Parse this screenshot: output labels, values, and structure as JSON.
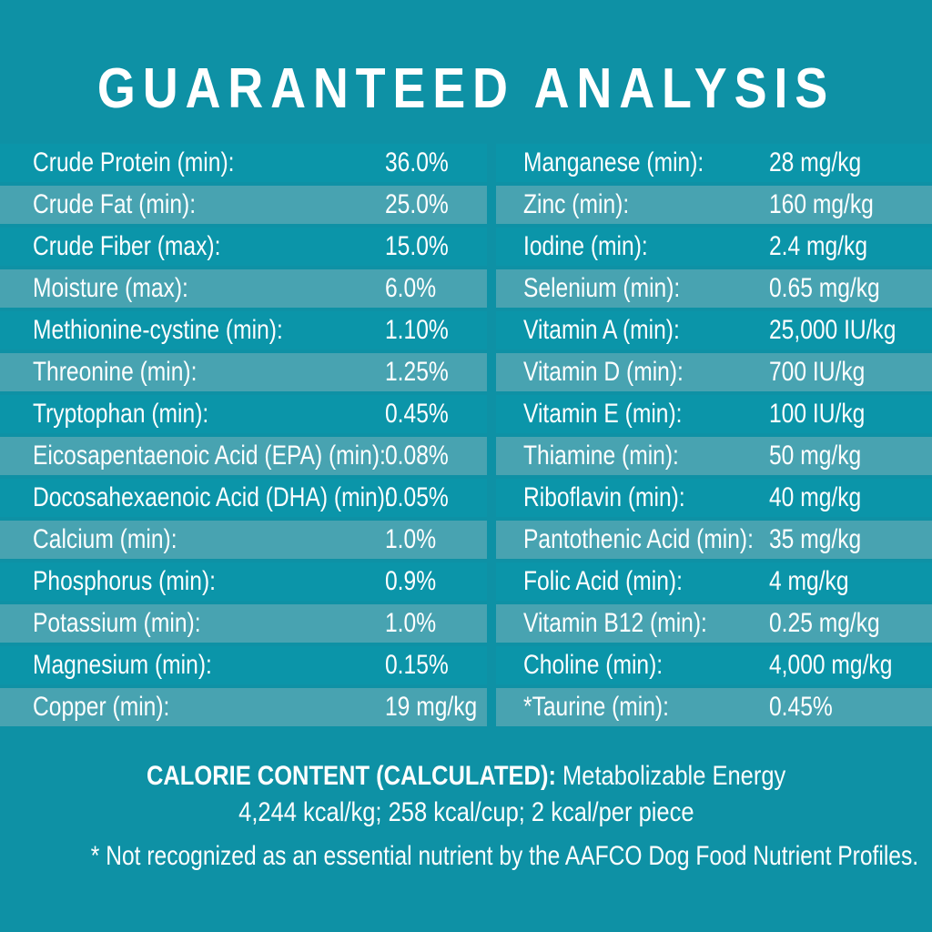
{
  "page": {
    "background_color": "#0E91A5",
    "row_dark_color": "#0B95A9",
    "row_light_color": "#48A3B1",
    "text_color": "#FDFEFE"
  },
  "title": "GUARANTEED ANALYSIS",
  "left_column": {
    "rows": [
      {
        "label": "Crude Protein (min):",
        "value": "36.0%"
      },
      {
        "label": "Crude Fat (min):",
        "value": "25.0%"
      },
      {
        "label": "Crude Fiber (max):",
        "value": "15.0%"
      },
      {
        "label": "Moisture (max):",
        "value": "6.0%"
      },
      {
        "label": "Methionine-cystine (min):",
        "value": "1.10%"
      },
      {
        "label": "Threonine (min):",
        "value": "1.25%"
      },
      {
        "label": "Tryptophan (min):",
        "value": "0.45%"
      },
      {
        "label": "Eicosapentaenoic Acid (EPA) (min):",
        "value": "0.08%"
      },
      {
        "label": "Docosahexaenoic Acid (DHA) (min):",
        "value": "0.05%"
      },
      {
        "label": "Calcium (min):",
        "value": "1.0%"
      },
      {
        "label": "Phosphorus (min):",
        "value": "0.9%"
      },
      {
        "label": "Potassium (min):",
        "value": "1.0%"
      },
      {
        "label": "Magnesium (min):",
        "value": "0.15%"
      },
      {
        "label": "Copper (min):",
        "value": "19 mg/kg"
      }
    ]
  },
  "right_column": {
    "rows": [
      {
        "label": "Manganese (min):",
        "value": "28 mg/kg"
      },
      {
        "label": "Zinc (min):",
        "value": "160 mg/kg"
      },
      {
        "label": "Iodine (min):",
        "value": "2.4 mg/kg"
      },
      {
        "label": "Selenium  (min):",
        "value": "0.65 mg/kg"
      },
      {
        "label": "Vitamin A (min):",
        "value": "25,000 IU/kg"
      },
      {
        "label": "Vitamin D (min):",
        "value": "700 IU/kg"
      },
      {
        "label": "Vitamin E (min):",
        "value": "100 IU/kg"
      },
      {
        "label": "Thiamine (min):",
        "value": "50 mg/kg"
      },
      {
        "label": "Riboflavin (min):",
        "value": "40 mg/kg"
      },
      {
        "label": "Pantothenic Acid (min):",
        "value": "35 mg/kg"
      },
      {
        "label": "Folic Acid (min):",
        "value": "4 mg/kg"
      },
      {
        "label": "Vitamin B12 (min):",
        "value": "0.25 mg/kg"
      },
      {
        "label": "Choline (min):",
        "value": "4,000 mg/kg"
      },
      {
        "label": "*Taurine (min):",
        "value": "0.45%"
      }
    ]
  },
  "calorie_content": {
    "heading": "CALORIE CONTENT (CALCULATED):",
    "description": " Metabolizable Energy",
    "values_line": "4,244 kcal/kg; 258 kcal/cup; 2 kcal/per piece"
  },
  "footnote": "* Not recognized as an essential nutrient by the AAFCO Dog Food Nutrient Profiles."
}
